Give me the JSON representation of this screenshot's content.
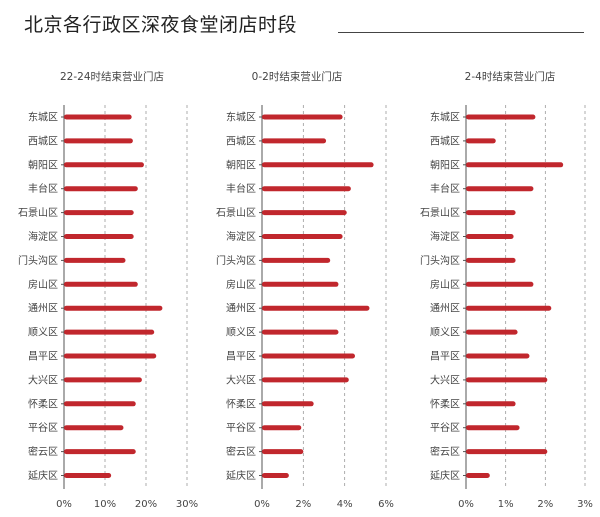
{
  "page": {
    "title": "北京各行政区深夜食堂闭店时段"
  },
  "colors": {
    "bar": "#c1272d",
    "axis": "#555555",
    "grid": "#9a9a9a",
    "text": "#444444"
  },
  "chart_data": [
    {
      "type": "bar",
      "orientation": "horizontal",
      "title": "22-24时结束营业门店",
      "categories": [
        "东城区",
        "西城区",
        "朝阳区",
        "丰台区",
        "石景山区",
        "海淀区",
        "门头沟区",
        "房山区",
        "通州区",
        "顺义区",
        "昌平区",
        "大兴区",
        "怀柔区",
        "平谷区",
        "密云区",
        "延庆区"
      ],
      "values": [
        16.5,
        16.8,
        19.5,
        18.0,
        17.0,
        17.0,
        15.0,
        18.0,
        24.0,
        22.0,
        22.5,
        19.0,
        17.5,
        14.5,
        17.5,
        11.5
      ],
      "ticks": [
        "0%",
        "10%",
        "20%",
        "30%"
      ],
      "tick_values": [
        0,
        10,
        20,
        30
      ],
      "xlim": [
        0,
        30
      ],
      "grid": "dashed-vertical"
    },
    {
      "type": "bar",
      "orientation": "horizontal",
      "title": "0-2时结束营业门店",
      "categories": [
        "东城区",
        "西城区",
        "朝阳区",
        "丰台区",
        "石景山区",
        "海淀区",
        "门头沟区",
        "房山区",
        "通州区",
        "顺义区",
        "昌平区",
        "大兴区",
        "怀柔区",
        "平谷区",
        "密云区",
        "延庆区"
      ],
      "values": [
        3.9,
        3.1,
        5.4,
        4.3,
        4.1,
        3.9,
        3.3,
        3.7,
        5.2,
        3.7,
        4.5,
        4.2,
        2.5,
        1.9,
        2.0,
        1.3
      ],
      "ticks": [
        "0%",
        "2%",
        "4%",
        "6%"
      ],
      "tick_values": [
        0,
        2,
        4,
        6
      ],
      "xlim": [
        0,
        6
      ],
      "grid": "dashed-vertical"
    },
    {
      "type": "bar",
      "orientation": "horizontal",
      "title": "2-4时结束营业门店",
      "categories": [
        "东城区",
        "西城区",
        "朝阳区",
        "丰台区",
        "石景山区",
        "海淀区",
        "门头沟区",
        "房山区",
        "通州区",
        "顺义区",
        "昌平区",
        "大兴区",
        "怀柔区",
        "平谷区",
        "密云区",
        "延庆区"
      ],
      "values": [
        1.75,
        0.75,
        2.45,
        1.7,
        1.25,
        1.2,
        1.25,
        1.7,
        2.15,
        1.3,
        1.6,
        2.05,
        1.25,
        1.35,
        2.05,
        0.6
      ],
      "ticks": [
        "0%",
        "1%",
        "2%",
        "3%"
      ],
      "tick_values": [
        0,
        1,
        2,
        3
      ],
      "xlim": [
        0,
        3
      ],
      "grid": "dashed-vertical"
    }
  ]
}
